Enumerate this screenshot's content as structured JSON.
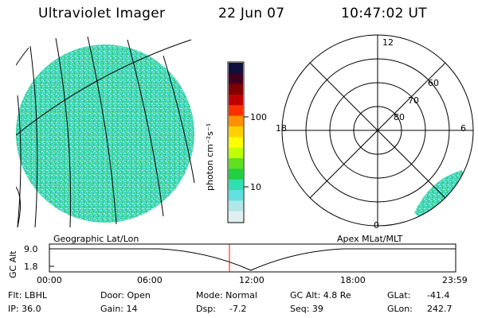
{
  "header": {
    "title": "Ultraviolet Imager",
    "date": "22 Jun 07",
    "time": "10:47:02 UT"
  },
  "colorbar": {
    "unit_label": "photon cm⁻²s⁻¹",
    "ticks": [
      "100",
      "10"
    ],
    "colors": [
      "#101040",
      "#400020",
      "#800000",
      "#c00000",
      "#ff3000",
      "#ff9000",
      "#ffd000",
      "#ffff00",
      "#c0ff00",
      "#60e020",
      "#20d040",
      "#30e0b0",
      "#60e0e0",
      "#b0e8e8",
      "#e0f0f0"
    ]
  },
  "polar": {
    "hour_labels": [
      "12",
      "18",
      "6",
      "0"
    ],
    "lat_labels": [
      "60",
      "70",
      "80"
    ]
  },
  "projection_labels": {
    "left": "Geographic Lat/Lon",
    "right": "Apex MLat/MLT"
  },
  "orbit_plot": {
    "ylabel": "GC Alt",
    "yticks": [
      "9.0",
      "1.8"
    ],
    "xticks": [
      "00:00",
      "06:00",
      "12:00",
      "18:00",
      "23:59"
    ],
    "current_time_color": "#ff0000"
  },
  "info": {
    "filter": "Flt: LBHL",
    "ip": "IP: 36.0",
    "door": "Door: Open",
    "gain": "Gain: 14",
    "mode": "Mode: Normal",
    "dsp": "Dsp:",
    "dsp_value": "-7.2",
    "gc_alt": "GC Alt: 4.8 Re",
    "seq": "Seq: 39",
    "glat_label": "GLat:",
    "glat_value": "-41.4",
    "glon_label": "GLon:",
    "glon_value": "242.7"
  }
}
